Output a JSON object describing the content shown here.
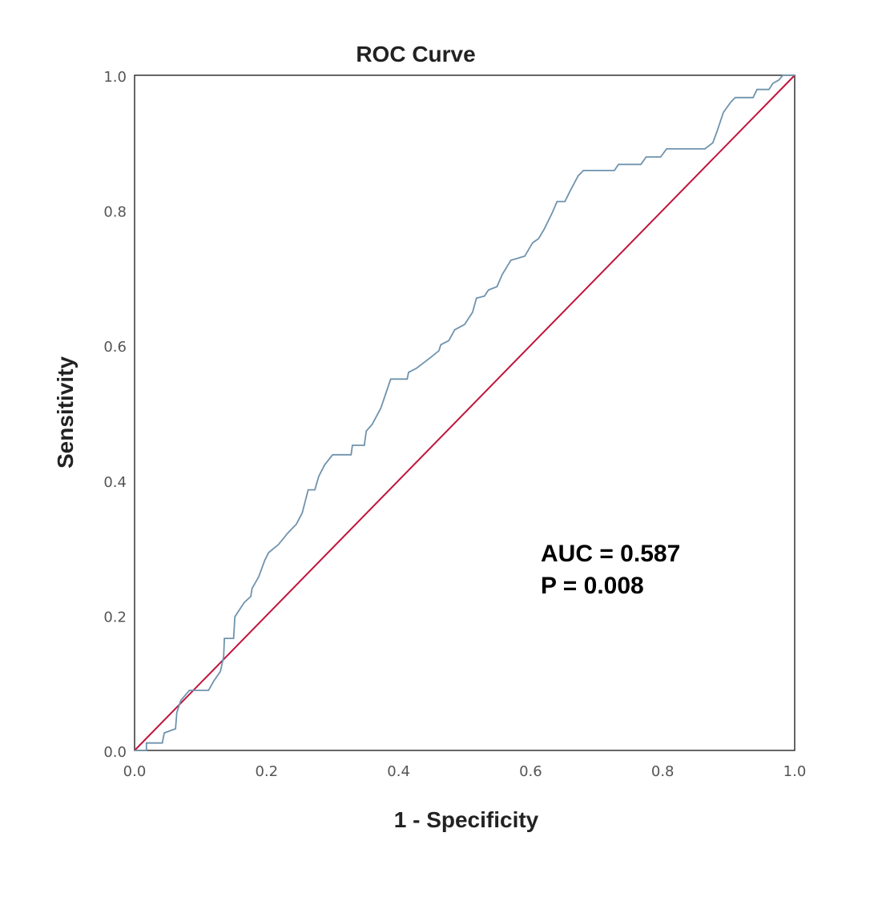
{
  "chart_data": {
    "type": "line",
    "title": "ROC Curve",
    "xlabel": "1 - Specificity",
    "ylabel": "Sensitivity",
    "xlim": [
      0,
      1
    ],
    "ylim": [
      0,
      1
    ],
    "xticks": [
      "0.0",
      "0.2",
      "0.4",
      "0.6",
      "0.8",
      "1.0"
    ],
    "yticks": [
      "0.0",
      "0.2",
      "0.4",
      "0.6",
      "0.8",
      "1.0"
    ],
    "grid": false,
    "annotations": [
      "AUC = 0.587",
      "P = 0.008"
    ],
    "series": [
      {
        "name": "ROC",
        "color": "#6f93ad",
        "points": [
          [
            0,
            0
          ],
          [
            0.018,
            0
          ],
          [
            0.018,
            0.011
          ],
          [
            0.042,
            0.011
          ],
          [
            0.045,
            0.026
          ],
          [
            0.062,
            0.032
          ],
          [
            0.064,
            0.056
          ],
          [
            0.07,
            0.074
          ],
          [
            0.083,
            0.089
          ],
          [
            0.112,
            0.089
          ],
          [
            0.12,
            0.103
          ],
          [
            0.13,
            0.117
          ],
          [
            0.135,
            0.139
          ],
          [
            0.136,
            0.166
          ],
          [
            0.15,
            0.166
          ],
          [
            0.152,
            0.198
          ],
          [
            0.16,
            0.21
          ],
          [
            0.166,
            0.219
          ],
          [
            0.176,
            0.228
          ],
          [
            0.178,
            0.24
          ],
          [
            0.188,
            0.257
          ],
          [
            0.197,
            0.281
          ],
          [
            0.203,
            0.293
          ],
          [
            0.218,
            0.305
          ],
          [
            0.233,
            0.323
          ],
          [
            0.245,
            0.335
          ],
          [
            0.254,
            0.352
          ],
          [
            0.263,
            0.386
          ],
          [
            0.273,
            0.386
          ],
          [
            0.279,
            0.406
          ],
          [
            0.288,
            0.423
          ],
          [
            0.3,
            0.438
          ],
          [
            0.328,
            0.438
          ],
          [
            0.33,
            0.452
          ],
          [
            0.348,
            0.452
          ],
          [
            0.351,
            0.473
          ],
          [
            0.36,
            0.483
          ],
          [
            0.373,
            0.507
          ],
          [
            0.388,
            0.55
          ],
          [
            0.413,
            0.55
          ],
          [
            0.415,
            0.56
          ],
          [
            0.427,
            0.566
          ],
          [
            0.439,
            0.575
          ],
          [
            0.451,
            0.584
          ],
          [
            0.461,
            0.592
          ],
          [
            0.464,
            0.601
          ],
          [
            0.476,
            0.607
          ],
          [
            0.485,
            0.623
          ],
          [
            0.5,
            0.631
          ],
          [
            0.512,
            0.649
          ],
          [
            0.518,
            0.67
          ],
          [
            0.53,
            0.673
          ],
          [
            0.536,
            0.682
          ],
          [
            0.549,
            0.687
          ],
          [
            0.557,
            0.705
          ],
          [
            0.57,
            0.726
          ],
          [
            0.591,
            0.732
          ],
          [
            0.603,
            0.752
          ],
          [
            0.612,
            0.758
          ],
          [
            0.621,
            0.773
          ],
          [
            0.633,
            0.797
          ],
          [
            0.64,
            0.813
          ],
          [
            0.652,
            0.813
          ],
          [
            0.66,
            0.829
          ],
          [
            0.672,
            0.851
          ],
          [
            0.68,
            0.859
          ],
          [
            0.727,
            0.859
          ],
          [
            0.733,
            0.868
          ],
          [
            0.767,
            0.868
          ],
          [
            0.775,
            0.879
          ],
          [
            0.797,
            0.879
          ],
          [
            0.806,
            0.891
          ],
          [
            0.864,
            0.891
          ],
          [
            0.876,
            0.9
          ],
          [
            0.882,
            0.916
          ],
          [
            0.892,
            0.945
          ],
          [
            0.903,
            0.96
          ],
          [
            0.91,
            0.967
          ],
          [
            0.937,
            0.967
          ],
          [
            0.943,
            0.979
          ],
          [
            0.961,
            0.979
          ],
          [
            0.967,
            0.988
          ],
          [
            0.976,
            0.993
          ],
          [
            0.982,
            1
          ],
          [
            1,
            1
          ]
        ]
      },
      {
        "name": "Reference line",
        "color": "#c0143c",
        "points": [
          [
            0,
            0
          ],
          [
            1,
            1
          ]
        ]
      }
    ]
  }
}
